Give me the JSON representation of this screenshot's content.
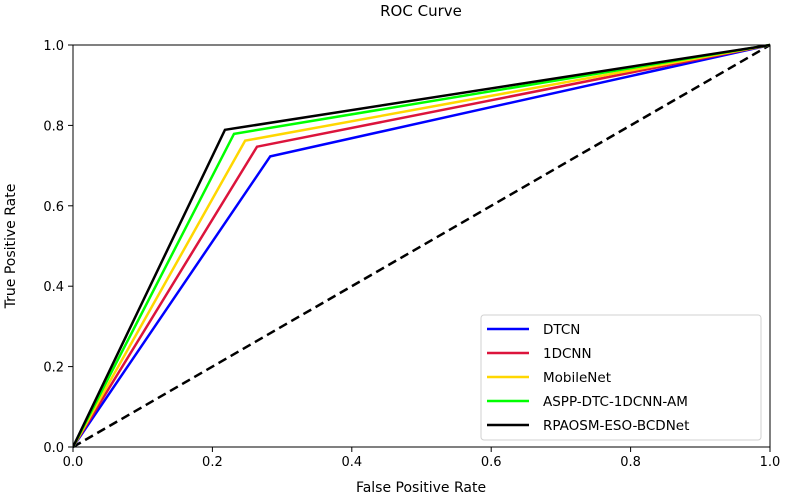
{
  "chart_data": {
    "type": "line",
    "title": "ROC Curve",
    "xlabel": "False Positive Rate",
    "ylabel": "True Positive Rate",
    "xlim": [
      0,
      1
    ],
    "ylim": [
      0,
      1
    ],
    "xticks": [
      "0.0",
      "0.2",
      "0.4",
      "0.6",
      "0.8",
      "1.0"
    ],
    "yticks": [
      "0.0",
      "0.2",
      "0.4",
      "0.6",
      "0.8",
      "1.0"
    ],
    "grid": false,
    "legend_position": "lower-right",
    "series": [
      {
        "name": "DTCN",
        "color": "#0000ff",
        "x": [
          0,
          0.283,
          1
        ],
        "y": [
          0,
          0.723,
          1
        ]
      },
      {
        "name": "1DCNN",
        "color": "#dc143c",
        "x": [
          0,
          0.264,
          1
        ],
        "y": [
          0,
          0.747,
          1
        ]
      },
      {
        "name": "MobileNet",
        "color": "#ffd700",
        "x": [
          0,
          0.247,
          1
        ],
        "y": [
          0,
          0.762,
          1
        ]
      },
      {
        "name": "ASPP-DTC-1DCNN-AM",
        "color": "#00ff00",
        "x": [
          0,
          0.231,
          1
        ],
        "y": [
          0,
          0.779,
          1
        ]
      },
      {
        "name": "RPAOSM-ESO-BCDNet",
        "color": "#000000",
        "x": [
          0,
          0.218,
          1
        ],
        "y": [
          0,
          0.789,
          1
        ]
      }
    ],
    "reference_line": {
      "x": [
        0,
        1
      ],
      "y": [
        0,
        1
      ],
      "style": "dashed",
      "color": "#000000"
    }
  }
}
